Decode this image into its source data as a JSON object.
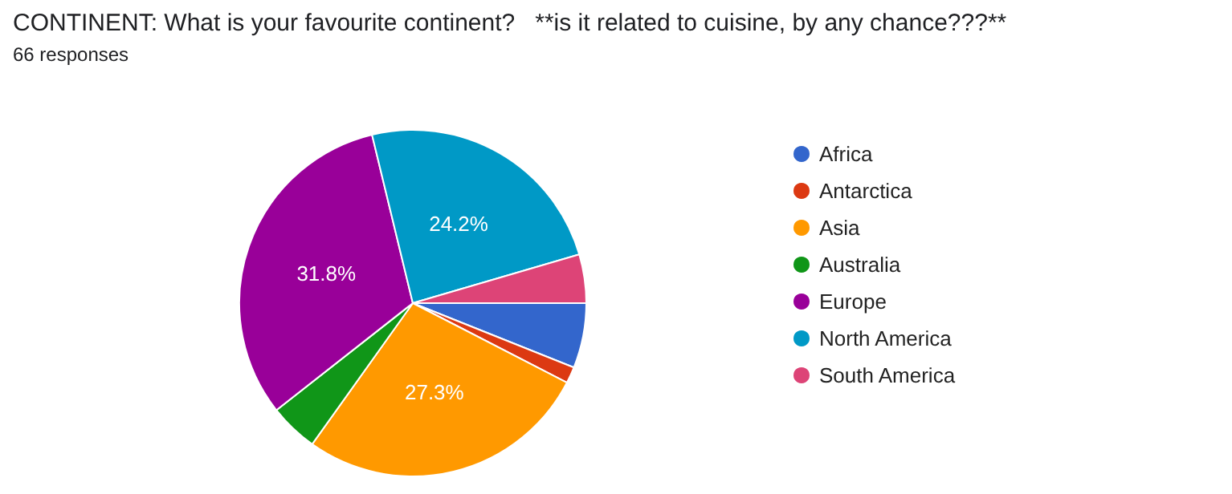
{
  "chart_data": {
    "type": "pie",
    "title": "CONTINENT: What is your favourite continent?   **is it related to cuisine, by any chance???**",
    "subtitle": "66 responses",
    "categories": [
      "Africa",
      "Antarctica",
      "Asia",
      "Australia",
      "Europe",
      "North America",
      "South America"
    ],
    "values": [
      6.06,
      1.52,
      27.27,
      4.55,
      31.82,
      24.24,
      4.54
    ],
    "value_labels": [
      null,
      null,
      "27.3%",
      null,
      "31.8%",
      "24.2%",
      null
    ],
    "colors": [
      "#3366cc",
      "#dc3912",
      "#ff9900",
      "#109618",
      "#990099",
      "#0099c6",
      "#dd4477"
    ],
    "legend": "right"
  }
}
